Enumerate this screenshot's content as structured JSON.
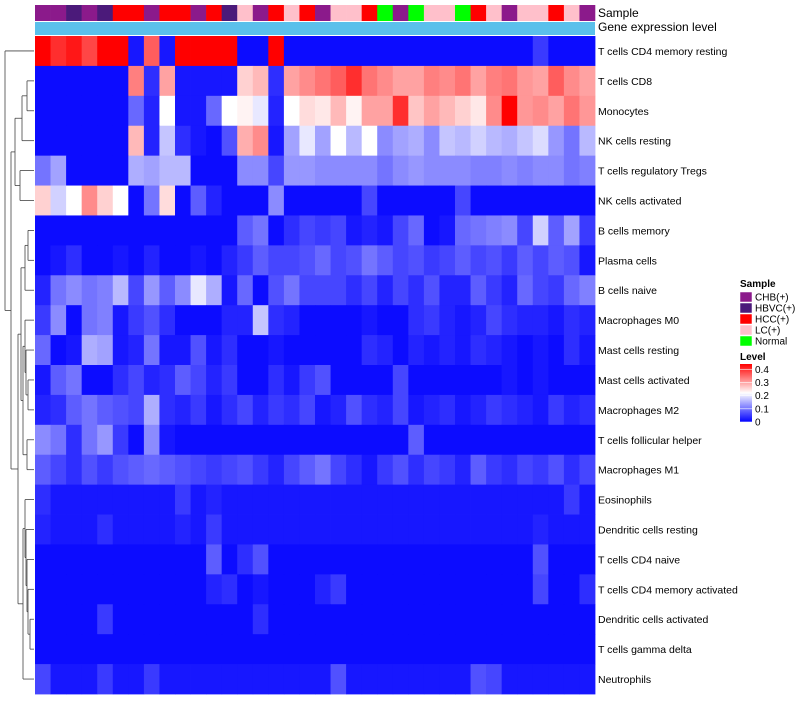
{
  "chart_data": {
    "type": "heatmap",
    "title": "",
    "annotation_tracks": [
      {
        "name": "Sample"
      },
      {
        "name": "Gene expression level"
      }
    ],
    "legends": {
      "sample": {
        "title": "Sample",
        "entries": [
          {
            "label": "CHB(+)",
            "color": "#8B1A8B"
          },
          {
            "label": "HBVC(+)",
            "color": "#4B1A7A"
          },
          {
            "label": "HCC(+)",
            "color": "#FF0000"
          },
          {
            "label": "LC(+)",
            "color": "#FFC0CB"
          },
          {
            "label": "Normal",
            "color": "#00FF00"
          }
        ]
      },
      "level": {
        "title": "Level",
        "ticks": [
          "0.4",
          "0.3",
          "0.2",
          "0.1",
          "0"
        ],
        "tick_values": [
          0.4,
          0.3,
          0.2,
          0.1,
          0
        ],
        "range": [
          0,
          0.44
        ],
        "colors": {
          "low": "#0000FF",
          "mid": "#FFFFFF",
          "high": "#FF0000"
        }
      }
    },
    "expression_bar_color": "#5BC0EB",
    "sample_colors": {
      "CHB(+)": "#8B1A8B",
      "HBVC(+)": "#4B1A7A",
      "HCC(+)": "#FF0000",
      "LC(+)": "#FFC0CB",
      "Normal": "#00FF00"
    },
    "sample_groups": [
      "CHB(+)",
      "CHB(+)",
      "HBVC(+)",
      "CHB(+)",
      "HBVC(+)",
      "HCC(+)",
      "HCC(+)",
      "CHB(+)",
      "HCC(+)",
      "HCC(+)",
      "CHB(+)",
      "HCC(+)",
      "HBVC(+)",
      "LC(+)",
      "CHB(+)",
      "HCC(+)",
      "LC(+)",
      "HCC(+)",
      "CHB(+)",
      "LC(+)",
      "LC(+)",
      "HCC(+)",
      "Normal",
      "CHB(+)",
      "Normal",
      "LC(+)",
      "LC(+)",
      "Normal",
      "HCC(+)",
      "LC(+)",
      "CHB(+)",
      "LC(+)",
      "LC(+)",
      "HCC(+)",
      "LC(+)",
      "CHB(+)"
    ],
    "rows": [
      "T cells CD4 memory resting",
      "T cells CD8",
      "Monocytes",
      "NK cells resting",
      "T cells regulatory  Tregs",
      "NK cells activated",
      "B cells memory",
      "Plasma cells",
      "B cells naive",
      "Macrophages M0",
      "Mast cells resting",
      "Mast cells activated",
      "Macrophages M2",
      "T cells follicular helper",
      "Macrophages M1",
      "Eosinophils",
      "Dendritic cells resting",
      "T cells CD4 naive",
      "T cells CD4 memory activated",
      "Dendritic cells activated",
      "T cells gamma delta",
      "Neutrophils"
    ],
    "values": [
      [
        0.44,
        0.4,
        0.42,
        0.38,
        0.44,
        0.44,
        0.02,
        0.36,
        0.02,
        0.44,
        0.44,
        0.44,
        0.44,
        0.01,
        0.01,
        0.44,
        0.01,
        0.01,
        0.01,
        0.01,
        0.01,
        0.01,
        0.01,
        0.01,
        0.01,
        0.01,
        0.01,
        0.01,
        0.01,
        0.01,
        0.01,
        0.01,
        0.05,
        0.01,
        0.01,
        0.01
      ],
      [
        0.01,
        0.01,
        0.01,
        0.01,
        0.01,
        0.01,
        0.33,
        0.04,
        0.3,
        0.02,
        0.02,
        0.02,
        0.02,
        0.26,
        0.28,
        0.04,
        0.3,
        0.32,
        0.34,
        0.36,
        0.4,
        0.34,
        0.32,
        0.3,
        0.3,
        0.33,
        0.32,
        0.34,
        0.3,
        0.33,
        0.34,
        0.31,
        0.3,
        0.36,
        0.32,
        0.3
      ],
      [
        0.01,
        0.01,
        0.01,
        0.01,
        0.01,
        0.01,
        0.09,
        0.03,
        0.22,
        0.02,
        0.02,
        0.09,
        0.22,
        0.23,
        0.2,
        0.03,
        0.22,
        0.25,
        0.24,
        0.28,
        0.23,
        0.3,
        0.3,
        0.4,
        0.27,
        0.3,
        0.28,
        0.26,
        0.24,
        0.32,
        0.44,
        0.31,
        0.32,
        0.3,
        0.34,
        0.31
      ],
      [
        0.01,
        0.01,
        0.01,
        0.01,
        0.01,
        0.01,
        0.28,
        0.03,
        0.17,
        0.04,
        0.02,
        0.01,
        0.07,
        0.29,
        0.32,
        0.02,
        0.14,
        0.2,
        0.14,
        0.22,
        0.16,
        0.22,
        0.12,
        0.14,
        0.15,
        0.12,
        0.17,
        0.16,
        0.18,
        0.16,
        0.15,
        0.17,
        0.19,
        0.13,
        0.1,
        0.16
      ],
      [
        0.1,
        0.14,
        0.01,
        0.01,
        0.01,
        0.01,
        0.15,
        0.14,
        0.16,
        0.16,
        0.01,
        0.01,
        0.01,
        0.12,
        0.12,
        0.06,
        0.13,
        0.13,
        0.12,
        0.12,
        0.12,
        0.12,
        0.1,
        0.12,
        0.13,
        0.12,
        0.12,
        0.12,
        0.11,
        0.11,
        0.12,
        0.11,
        0.12,
        0.12,
        0.1,
        0.11
      ],
      [
        0.26,
        0.18,
        0.22,
        0.32,
        0.26,
        0.22,
        0.01,
        0.1,
        0.25,
        0.01,
        0.08,
        0.03,
        0.01,
        0.01,
        0.01,
        0.12,
        0.01,
        0.01,
        0.01,
        0.01,
        0.01,
        0.06,
        0.01,
        0.01,
        0.01,
        0.01,
        0.01,
        0.06,
        0.01,
        0.01,
        0.01,
        0.01,
        0.01,
        0.01,
        0.01,
        0.01
      ],
      [
        0.01,
        0.01,
        0.01,
        0.01,
        0.01,
        0.01,
        0.01,
        0.01,
        0.01,
        0.01,
        0.01,
        0.01,
        0.01,
        0.08,
        0.1,
        0.01,
        0.04,
        0.06,
        0.05,
        0.06,
        0.02,
        0.03,
        0.02,
        0.06,
        0.09,
        0.01,
        0.02,
        0.09,
        0.1,
        0.11,
        0.12,
        0.06,
        0.18,
        0.08,
        0.14,
        0.05
      ],
      [
        0.01,
        0.02,
        0.04,
        0.01,
        0.01,
        0.02,
        0.01,
        0.03,
        0.01,
        0.01,
        0.02,
        0.01,
        0.03,
        0.05,
        0.08,
        0.06,
        0.06,
        0.07,
        0.09,
        0.06,
        0.07,
        0.1,
        0.08,
        0.06,
        0.07,
        0.05,
        0.06,
        0.08,
        0.06,
        0.07,
        0.05,
        0.08,
        0.06,
        0.08,
        0.07,
        0.02
      ],
      [
        0.03,
        0.1,
        0.12,
        0.1,
        0.11,
        0.16,
        0.06,
        0.13,
        0.08,
        0.12,
        0.2,
        0.15,
        0.02,
        0.09,
        0.01,
        0.07,
        0.1,
        0.06,
        0.06,
        0.06,
        0.04,
        0.06,
        0.03,
        0.06,
        0.04,
        0.07,
        0.03,
        0.03,
        0.08,
        0.05,
        0.03,
        0.09,
        0.06,
        0.05,
        0.09,
        0.11
      ],
      [
        0.05,
        0.12,
        0.01,
        0.1,
        0.11,
        0.02,
        0.05,
        0.07,
        0.04,
        0.01,
        0.01,
        0.01,
        0.03,
        0.03,
        0.17,
        0.04,
        0.03,
        0.01,
        0.01,
        0.01,
        0.01,
        0.02,
        0.01,
        0.01,
        0.04,
        0.05,
        0.03,
        0.02,
        0.03,
        0.06,
        0.04,
        0.03,
        0.03,
        0.02,
        0.04,
        0.03
      ],
      [
        0.09,
        0.01,
        0.02,
        0.15,
        0.14,
        0.02,
        0.03,
        0.1,
        0.02,
        0.02,
        0.07,
        0.02,
        0.04,
        0.01,
        0.01,
        0.02,
        0.01,
        0.01,
        0.01,
        0.01,
        0.01,
        0.04,
        0.03,
        0.01,
        0.03,
        0.02,
        0.03,
        0.02,
        0.04,
        0.03,
        0.02,
        0.01,
        0.02,
        0.01,
        0.04,
        0.02
      ],
      [
        0.02,
        0.08,
        0.1,
        0.01,
        0.01,
        0.04,
        0.06,
        0.03,
        0.04,
        0.08,
        0.06,
        0.03,
        0.05,
        0.01,
        0.01,
        0.04,
        0.02,
        0.05,
        0.07,
        0.01,
        0.01,
        0.01,
        0.01,
        0.06,
        0.01,
        0.01,
        0.01,
        0.01,
        0.01,
        0.01,
        0.02,
        0.01,
        0.02,
        0.01,
        0.01,
        0.01
      ],
      [
        0.03,
        0.04,
        0.08,
        0.1,
        0.08,
        0.07,
        0.06,
        0.15,
        0.04,
        0.03,
        0.05,
        0.02,
        0.04,
        0.06,
        0.03,
        0.05,
        0.04,
        0.06,
        0.02,
        0.03,
        0.07,
        0.04,
        0.03,
        0.06,
        0.02,
        0.03,
        0.04,
        0.02,
        0.03,
        0.05,
        0.04,
        0.03,
        0.02,
        0.05,
        0.03,
        0.04
      ],
      [
        0.12,
        0.1,
        0.04,
        0.1,
        0.13,
        0.05,
        0.01,
        0.12,
        0.02,
        0.01,
        0.01,
        0.01,
        0.01,
        0.01,
        0.01,
        0.01,
        0.01,
        0.01,
        0.01,
        0.01,
        0.01,
        0.01,
        0.01,
        0.01,
        0.08,
        0.01,
        0.01,
        0.01,
        0.01,
        0.01,
        0.01,
        0.01,
        0.01,
        0.01,
        0.01,
        0.01
      ],
      [
        0.08,
        0.06,
        0.04,
        0.07,
        0.05,
        0.07,
        0.08,
        0.09,
        0.08,
        0.07,
        0.06,
        0.05,
        0.06,
        0.07,
        0.05,
        0.03,
        0.06,
        0.08,
        0.1,
        0.06,
        0.04,
        0.02,
        0.05,
        0.07,
        0.04,
        0.06,
        0.05,
        0.03,
        0.08,
        0.05,
        0.04,
        0.06,
        0.05,
        0.07,
        0.04,
        0.06
      ],
      [
        0.04,
        0.02,
        0.02,
        0.02,
        0.02,
        0.02,
        0.02,
        0.02,
        0.02,
        0.05,
        0.02,
        0.03,
        0.02,
        0.02,
        0.02,
        0.02,
        0.02,
        0.02,
        0.02,
        0.02,
        0.02,
        0.02,
        0.02,
        0.02,
        0.02,
        0.02,
        0.02,
        0.02,
        0.02,
        0.02,
        0.02,
        0.02,
        0.02,
        0.02,
        0.05,
        0.02
      ],
      [
        0.03,
        0.02,
        0.02,
        0.02,
        0.04,
        0.02,
        0.02,
        0.02,
        0.02,
        0.03,
        0.02,
        0.05,
        0.02,
        0.02,
        0.02,
        0.02,
        0.02,
        0.02,
        0.02,
        0.02,
        0.02,
        0.02,
        0.02,
        0.02,
        0.02,
        0.02,
        0.02,
        0.02,
        0.02,
        0.02,
        0.02,
        0.02,
        0.03,
        0.02,
        0.02,
        0.02
      ],
      [
        0.01,
        0.01,
        0.01,
        0.01,
        0.01,
        0.01,
        0.01,
        0.01,
        0.01,
        0.01,
        0.01,
        0.08,
        0.01,
        0.04,
        0.07,
        0.01,
        0.01,
        0.01,
        0.01,
        0.01,
        0.01,
        0.01,
        0.01,
        0.01,
        0.01,
        0.01,
        0.01,
        0.01,
        0.01,
        0.01,
        0.01,
        0.01,
        0.07,
        0.01,
        0.01,
        0.01
      ],
      [
        0.01,
        0.01,
        0.01,
        0.01,
        0.01,
        0.01,
        0.01,
        0.01,
        0.01,
        0.01,
        0.01,
        0.03,
        0.04,
        0.01,
        0.02,
        0.01,
        0.01,
        0.01,
        0.03,
        0.05,
        0.01,
        0.01,
        0.01,
        0.01,
        0.01,
        0.01,
        0.01,
        0.01,
        0.01,
        0.01,
        0.01,
        0.01,
        0.06,
        0.01,
        0.01,
        0.04
      ],
      [
        0.01,
        0.01,
        0.01,
        0.01,
        0.05,
        0.01,
        0.01,
        0.01,
        0.01,
        0.01,
        0.01,
        0.01,
        0.01,
        0.01,
        0.04,
        0.01,
        0.01,
        0.01,
        0.01,
        0.01,
        0.01,
        0.01,
        0.01,
        0.01,
        0.01,
        0.01,
        0.01,
        0.01,
        0.01,
        0.01,
        0.01,
        0.01,
        0.01,
        0.01,
        0.01,
        0.01
      ],
      [
        0.01,
        0.01,
        0.01,
        0.01,
        0.01,
        0.01,
        0.01,
        0.01,
        0.01,
        0.01,
        0.01,
        0.01,
        0.01,
        0.01,
        0.01,
        0.01,
        0.01,
        0.01,
        0.01,
        0.01,
        0.01,
        0.01,
        0.01,
        0.01,
        0.01,
        0.01,
        0.01,
        0.01,
        0.01,
        0.01,
        0.01,
        0.01,
        0.01,
        0.01,
        0.01,
        0.01
      ],
      [
        0.06,
        0.02,
        0.02,
        0.02,
        0.05,
        0.02,
        0.02,
        0.05,
        0.02,
        0.02,
        0.02,
        0.02,
        0.02,
        0.02,
        0.02,
        0.02,
        0.02,
        0.02,
        0.02,
        0.07,
        0.02,
        0.02,
        0.02,
        0.02,
        0.02,
        0.02,
        0.02,
        0.02,
        0.07,
        0.06,
        0.02,
        0.02,
        0.02,
        0.02,
        0.02,
        0.02
      ]
    ]
  }
}
